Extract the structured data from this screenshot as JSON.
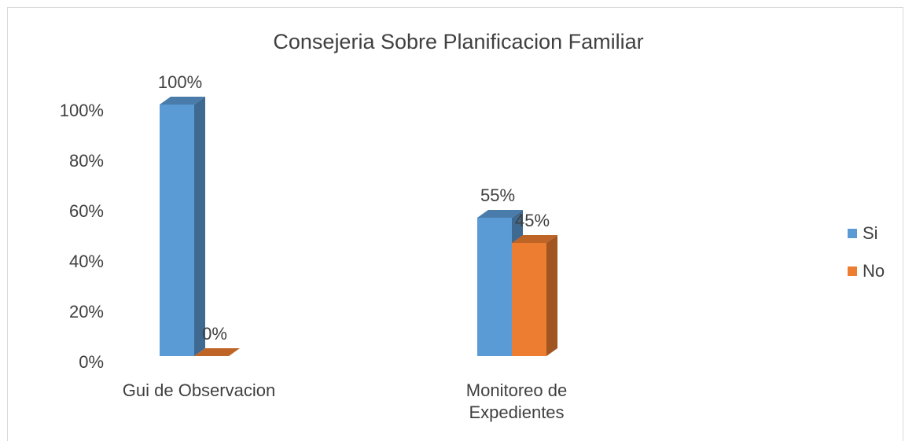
{
  "chart_data": {
    "type": "bar3d",
    "title": "Consejeria Sobre Planificacion Familiar",
    "categories": [
      "Gui de Observacion",
      "Monitoreo de Expedientes"
    ],
    "series": [
      {
        "name": "Si",
        "color": "#5b9bd5",
        "values": [
          100,
          55
        ],
        "value_labels": [
          "100%",
          "55%"
        ]
      },
      {
        "name": "No",
        "color": "#ed7d31",
        "values": [
          0,
          45
        ],
        "value_labels": [
          "0%",
          "45%"
        ]
      }
    ],
    "ylim": [
      0,
      100
    ],
    "yticks": [
      {
        "value": 0,
        "label": "0%"
      },
      {
        "value": 20,
        "label": "20%"
      },
      {
        "value": 40,
        "label": "40%"
      },
      {
        "value": 60,
        "label": "60%"
      },
      {
        "value": 80,
        "label": "80%"
      },
      {
        "value": 100,
        "label": "100%"
      }
    ],
    "grid": false,
    "legend": "right"
  }
}
